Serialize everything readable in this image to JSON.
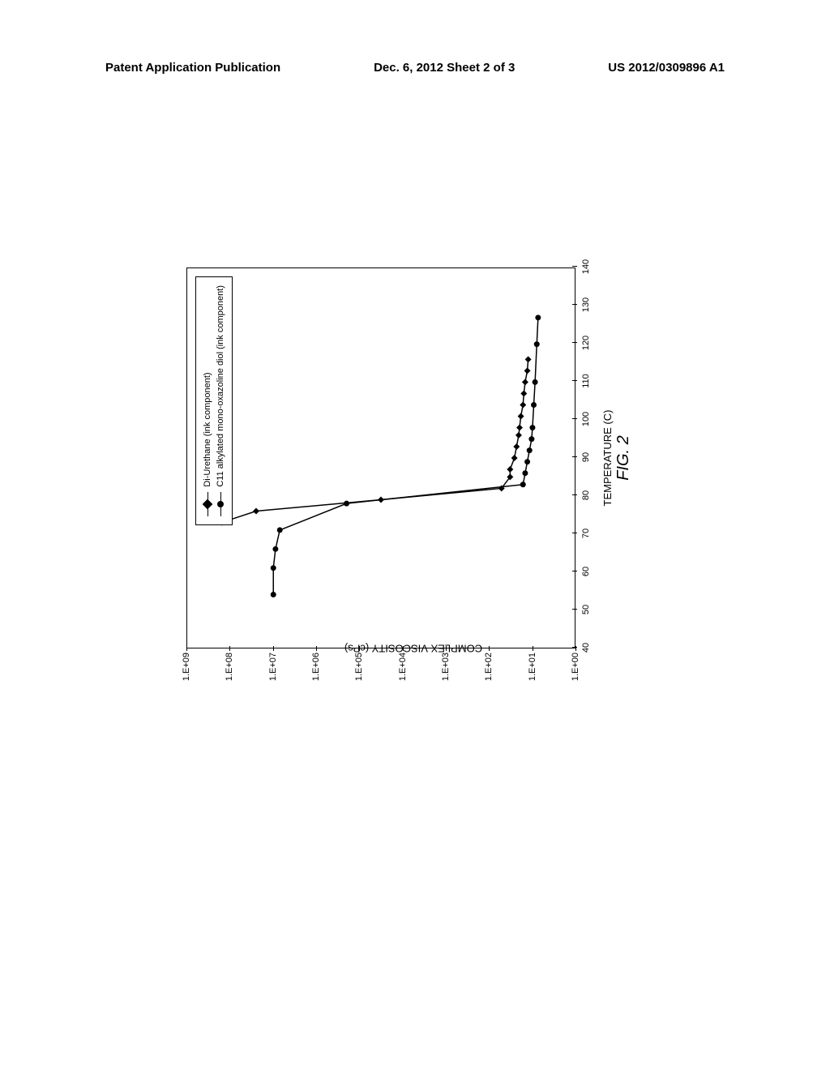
{
  "header": {
    "left": "Patent Application Publication",
    "center": "Dec. 6, 2012  Sheet 2 of 3",
    "right": "US 2012/0309896 A1"
  },
  "chart": {
    "type": "line",
    "rotation": -90,
    "ylabel": "COMPLEX VISCOSITY (cPs)",
    "xlabel": "TEMPERATURE (C)",
    "fig_label": "FIG. 2",
    "xlim": [
      40,
      140
    ],
    "ylim_log": [
      0,
      9
    ],
    "y_ticks": [
      "1.E+00",
      "1.E+01",
      "1.E+02",
      "1.E+03",
      "1.E+04",
      "1.E+05",
      "1.E+06",
      "1.E+07",
      "1.E+08",
      "1.E+09"
    ],
    "x_ticks": [
      40,
      50,
      60,
      70,
      80,
      90,
      100,
      110,
      120,
      130,
      140
    ],
    "axis_color": "#000000",
    "background_color": "#ffffff",
    "label_fontsize": 13,
    "tick_fontsize": 11,
    "line_width": 1.5,
    "marker_size": 8,
    "series": [
      {
        "name": "Di-Urethane (ink component)",
        "marker": "diamond",
        "color": "#000000",
        "data": [
          [
            73,
            8.2
          ],
          [
            76,
            7.4
          ],
          [
            79,
            4.5
          ],
          [
            82,
            1.7
          ],
          [
            85,
            1.5
          ],
          [
            87,
            1.5
          ],
          [
            90,
            1.4
          ],
          [
            93,
            1.35
          ],
          [
            96,
            1.3
          ],
          [
            98,
            1.28
          ],
          [
            101,
            1.25
          ],
          [
            104,
            1.2
          ],
          [
            107,
            1.18
          ],
          [
            110,
            1.15
          ],
          [
            113,
            1.1
          ],
          [
            116,
            1.08
          ]
        ]
      },
      {
        "name": "C11 alkylated mono-oxazoline diol (ink component)",
        "marker": "circle",
        "color": "#000000",
        "data": [
          [
            54,
            7.0
          ],
          [
            61,
            7.0
          ],
          [
            66,
            6.95
          ],
          [
            71,
            6.85
          ],
          [
            78,
            5.3
          ],
          [
            83,
            1.2
          ],
          [
            86,
            1.15
          ],
          [
            89,
            1.1
          ],
          [
            92,
            1.05
          ],
          [
            95,
            1.0
          ],
          [
            98,
            0.98
          ],
          [
            104,
            0.95
          ],
          [
            110,
            0.92
          ],
          [
            120,
            0.88
          ],
          [
            127,
            0.85
          ]
        ]
      }
    ],
    "legend": {
      "position": "top-right",
      "border_color": "#000000",
      "fontsize": 11
    }
  }
}
